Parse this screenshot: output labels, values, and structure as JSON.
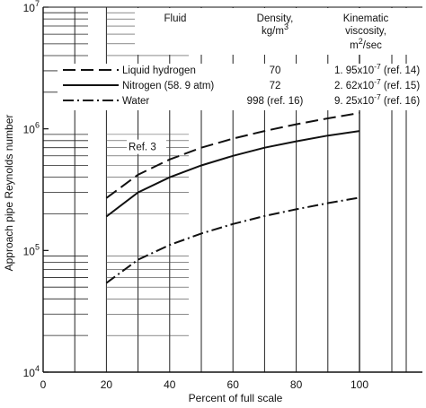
{
  "chart_data": {
    "type": "line",
    "xlabel": "Percent of full scale",
    "ylabel": "Approach pipe Reynolds number",
    "xlim": [
      0,
      100
    ],
    "ylim": [
      10000,
      10000000
    ],
    "y_scale": "log",
    "x_ticks": [
      {
        "value": 0,
        "label": "0"
      },
      {
        "value": 20,
        "label": "20"
      },
      {
        "value": 40,
        "label": "40"
      },
      {
        "value": 60,
        "label": "60"
      },
      {
        "value": 80,
        "label": "80"
      },
      {
        "value": 100,
        "label": "100"
      }
    ],
    "y_ticks": [
      {
        "exp": 4,
        "base": "10",
        "sup": "4"
      },
      {
        "exp": 5,
        "base": "10",
        "sup": "5"
      },
      {
        "exp": 6,
        "base": "10",
        "sup": "6"
      },
      {
        "exp": 7,
        "base": "10",
        "sup": "7"
      }
    ],
    "table_header": {
      "fluid": "Fluid",
      "density": [
        "Density,",
        "kg/m"
      ],
      "density_sup": "3",
      "viscosity": [
        "Kinematic",
        "viscosity,",
        "m"
      ],
      "viscosity_sup": "2",
      "viscosity_unit": "/sec"
    },
    "series": [
      {
        "name": "Liquid hydrogen",
        "line_style": "long-dash",
        "density": "70",
        "viscosity": "1. 95x10",
        "viscosity_exp": "-7",
        "reference": "(ref. 14)",
        "x": [
          20,
          30,
          40,
          50,
          60,
          70,
          80,
          90,
          100
        ],
        "y": [
          270000,
          420000,
          560000,
          700000,
          830000,
          960000,
          1090000,
          1220000,
          1350000
        ]
      },
      {
        "name": "Nitrogen (58. 9 atm)",
        "line_style": "solid",
        "density": "72",
        "viscosity": "2. 62x10",
        "viscosity_exp": "-7",
        "reference": "(ref. 15)",
        "x": [
          20,
          30,
          40,
          50,
          60,
          70,
          80,
          90,
          100
        ],
        "y": [
          190000,
          300000,
          400000,
          500000,
          600000,
          700000,
          790000,
          880000,
          960000
        ]
      },
      {
        "name": "Water",
        "line_style": "dash-dot",
        "density": "998 (ref. 16)",
        "viscosity": "9. 25x10",
        "viscosity_exp": "-7",
        "reference": "(ref. 16)",
        "x": [
          20,
          30,
          40,
          50,
          60,
          70,
          80,
          90,
          100
        ],
        "y": [
          54000,
          84000,
          111000,
          138000,
          165000,
          192000,
          218000,
          245000,
          272000
        ]
      }
    ],
    "annotations": [
      {
        "text": "Ref. 3",
        "x": 27,
        "y": 1000000
      }
    ]
  }
}
